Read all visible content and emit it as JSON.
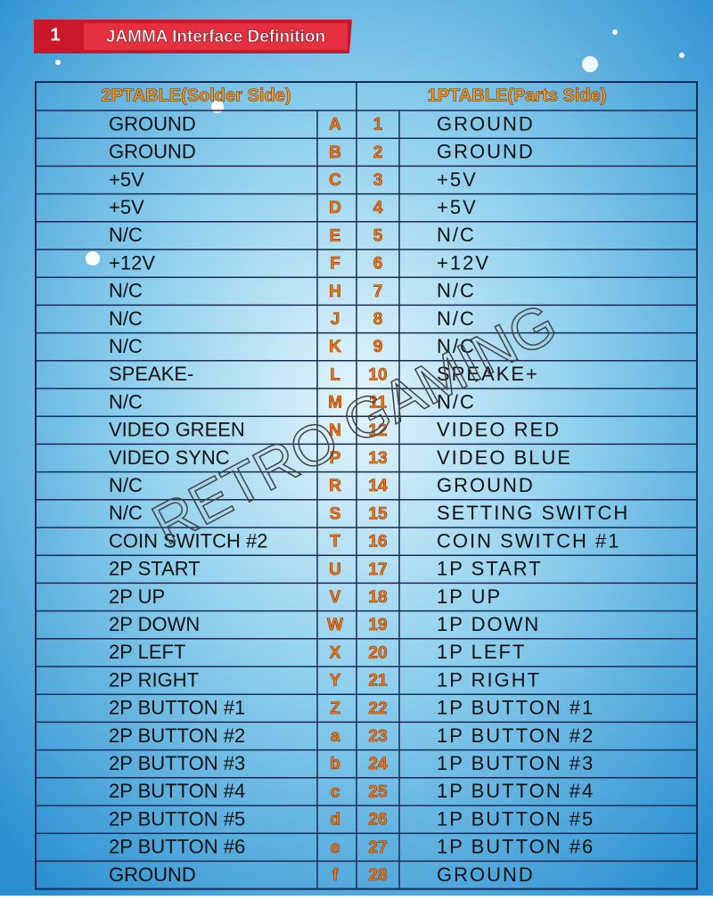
{
  "header": {
    "badge": "1",
    "title": "JAMMA Interface Definition"
  },
  "table": {
    "headers": [
      "2PTABLE(Solder Side)",
      "1PTABLE(Parts Side)"
    ],
    "rows": [
      [
        "GROUND",
        "A",
        1,
        "GROUND"
      ],
      [
        "GROUND",
        "B",
        2,
        "GROUND"
      ],
      [
        "+5V",
        "C",
        3,
        "+5V"
      ],
      [
        "+5V",
        "D",
        4,
        "+5V"
      ],
      [
        "N/C",
        "E",
        5,
        "N/C"
      ],
      [
        "+12V",
        "F",
        6,
        "+12V"
      ],
      [
        "N/C",
        "H",
        7,
        "N/C"
      ],
      [
        "N/C",
        "J",
        8,
        "N/C"
      ],
      [
        "N/C",
        "K",
        9,
        "N/C"
      ],
      [
        "SPEAKE-",
        "L",
        10,
        "SPEAKE+"
      ],
      [
        "N/C",
        "M",
        11,
        "N/C"
      ],
      [
        "VIDEO GREEN",
        "N",
        12,
        "VIDEO RED"
      ],
      [
        "VIDEO SYNC",
        "P",
        13,
        "VIDEO BLUE"
      ],
      [
        "N/C",
        "R",
        14,
        "GROUND"
      ],
      [
        "N/C",
        "S",
        15,
        "SETTING SWITCH"
      ],
      [
        "COIN SWITCH #2",
        "T",
        16,
        "COIN SWITCH #1"
      ],
      [
        "2P START",
        "U",
        17,
        "1P START"
      ],
      [
        "2P UP",
        "V",
        18,
        "1P UP"
      ],
      [
        "2P DOWN",
        "W",
        19,
        "1P DOWN"
      ],
      [
        "2P LEFT",
        "X",
        20,
        "1P LEFT"
      ],
      [
        "2P RIGHT",
        "Y",
        21,
        "1P RIGHT"
      ],
      [
        "2P BUTTON #1",
        "Z",
        22,
        "1P BUTTON #1"
      ],
      [
        "2P BUTTON #2",
        "a",
        23,
        "1P BUTTON #2"
      ],
      [
        "2P BUTTON #3",
        "b",
        24,
        "1P BUTTON #3"
      ],
      [
        "2P BUTTON #4",
        "c",
        25,
        "1P BUTTON #4"
      ],
      [
        "2P BUTTON #5",
        "d",
        26,
        "1P BUTTON #5"
      ],
      [
        "2P BUTTON #6",
        "e",
        27,
        "1P BUTTON #6"
      ],
      [
        "GROUND",
        "f",
        28,
        "GROUND"
      ]
    ]
  },
  "watermark": "RETRO GAMING"
}
